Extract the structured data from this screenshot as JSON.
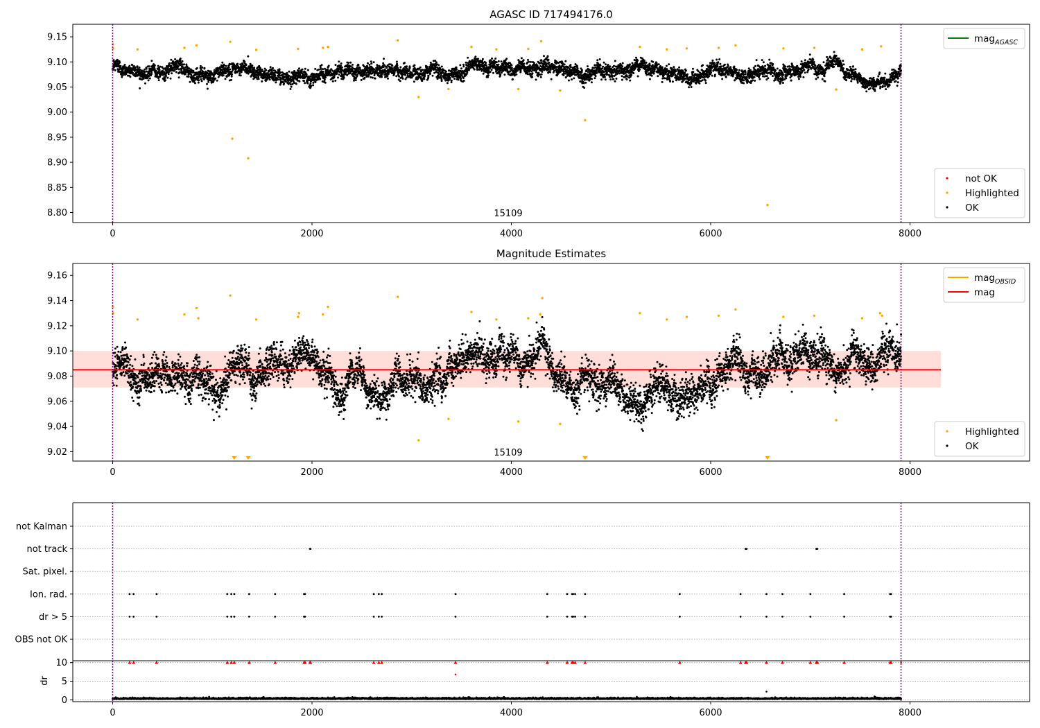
{
  "colors": {
    "ok": "#000000",
    "highlighted": "#ffa500",
    "not_ok": "#ff0000",
    "mag_agasc": "#008000",
    "mag_obsid": "#ffa500",
    "mag": "#ff0000",
    "band": "#ffc8c0",
    "obs_line": "#800080"
  },
  "chart_data": [
    {
      "type": "scatter",
      "title": "AGASC ID 717494176.0",
      "xlim": [
        -400,
        9200
      ],
      "ylim": [
        8.78,
        9.175
      ],
      "xticks": [
        0,
        2000,
        4000,
        6000,
        8000
      ],
      "yticks": [
        8.8,
        8.85,
        8.9,
        8.95,
        9.0,
        9.05,
        9.1,
        9.15
      ],
      "obs_boundaries": [
        0,
        7910
      ],
      "obsid_label": "15109",
      "ok_series": {
        "name": "OK",
        "x_range": [
          0,
          7910
        ],
        "y_baseline": 9.085,
        "y_spread": 0.012
      },
      "highlighted_points": [
        [
          2,
          9.135
        ],
        [
          5,
          9.127
        ],
        [
          250,
          9.125
        ],
        [
          720,
          9.128
        ],
        [
          840,
          9.133
        ],
        [
          1180,
          9.14
        ],
        [
          1200,
          8.947
        ],
        [
          1360,
          8.908
        ],
        [
          1440,
          9.124
        ],
        [
          1860,
          9.126
        ],
        [
          2110,
          9.128
        ],
        [
          2160,
          9.13
        ],
        [
          2860,
          9.143
        ],
        [
          3070,
          9.03
        ],
        [
          3370,
          9.046
        ],
        [
          3600,
          9.13
        ],
        [
          3850,
          9.125
        ],
        [
          4070,
          9.046
        ],
        [
          4170,
          9.126
        ],
        [
          4300,
          9.141
        ],
        [
          4490,
          9.043
        ],
        [
          4740,
          8.984
        ],
        [
          5290,
          9.13
        ],
        [
          5560,
          9.125
        ],
        [
          5760,
          9.127
        ],
        [
          6080,
          9.128
        ],
        [
          6250,
          9.133
        ],
        [
          6570,
          8.815
        ],
        [
          6730,
          9.127
        ],
        [
          7040,
          9.128
        ],
        [
          7260,
          9.045
        ],
        [
          7520,
          9.125
        ],
        [
          7710,
          9.131
        ]
      ],
      "legends": [
        {
          "position": "top-right",
          "entries": [
            {
              "label": "mag",
              "subscript": "AGASC",
              "marker": "line",
              "color": "#008000"
            }
          ]
        },
        {
          "position": "bottom-right",
          "entries": [
            {
              "label": "not OK",
              "marker": "dot",
              "color": "#ff0000"
            },
            {
              "label": "Highlighted",
              "marker": "dot",
              "color": "#ffa500"
            },
            {
              "label": "OK",
              "marker": "dot",
              "color": "#000000"
            }
          ]
        }
      ]
    },
    {
      "type": "scatter",
      "title": "Magnitude Estimates",
      "xlim": [
        -400,
        9200
      ],
      "ylim": [
        9.0125,
        9.1695
      ],
      "xticks": [
        0,
        2000,
        4000,
        6000,
        8000
      ],
      "yticks": [
        9.02,
        9.04,
        9.06,
        9.08,
        9.1,
        9.12,
        9.14,
        9.16
      ],
      "obs_boundaries": [
        0,
        7910
      ],
      "obsid_label": "15109",
      "mag_line": {
        "value": 9.085,
        "x_range": [
          -400,
          8310
        ]
      },
      "mag_band": {
        "range": [
          9.071,
          9.1
        ],
        "x_range": [
          -400,
          8310
        ]
      },
      "ok_series": {
        "name": "OK",
        "x_range": [
          0,
          7910
        ],
        "y_baseline": 9.084,
        "y_spread": 0.012
      },
      "highlighted_points": [
        [
          2,
          9.135
        ],
        [
          5,
          9.13
        ],
        [
          250,
          9.125
        ],
        [
          720,
          9.129
        ],
        [
          840,
          9.134
        ],
        [
          860,
          9.126
        ],
        [
          1180,
          9.144
        ],
        [
          1440,
          9.125
        ],
        [
          1860,
          9.127
        ],
        [
          1870,
          9.13
        ],
        [
          2110,
          9.129
        ],
        [
          2160,
          9.135
        ],
        [
          2860,
          9.143
        ],
        [
          3070,
          9.029
        ],
        [
          3370,
          9.046
        ],
        [
          3600,
          9.131
        ],
        [
          3850,
          9.125
        ],
        [
          4070,
          9.044
        ],
        [
          4170,
          9.126
        ],
        [
          4290,
          9.129
        ],
        [
          4310,
          9.142
        ],
        [
          4490,
          9.042
        ],
        [
          5290,
          9.13
        ],
        [
          5560,
          9.125
        ],
        [
          5760,
          9.127
        ],
        [
          6080,
          9.128
        ],
        [
          6250,
          9.133
        ],
        [
          6730,
          9.127
        ],
        [
          7040,
          9.128
        ],
        [
          7260,
          9.045
        ],
        [
          7520,
          9.126
        ],
        [
          7700,
          9.13
        ],
        [
          7720,
          9.128
        ]
      ],
      "below_axis_markers": [
        1220,
        1360,
        4740,
        6570
      ],
      "legends": [
        {
          "position": "top-right",
          "entries": [
            {
              "label": "mag",
              "subscript": "OBSID",
              "marker": "line",
              "color": "#ffa500"
            },
            {
              "label": "mag",
              "marker": "line",
              "color": "#ff0000"
            }
          ]
        },
        {
          "position": "bottom-right",
          "entries": [
            {
              "label": "Highlighted",
              "marker": "dot",
              "color": "#ffa500"
            },
            {
              "label": "OK",
              "marker": "dot",
              "color": "#000000"
            }
          ]
        }
      ]
    },
    {
      "type": "scatter",
      "title": "",
      "xlim": [
        -400,
        9200
      ],
      "categories": [
        "not Kalman",
        "not track",
        "Sat. pixel.",
        "Ion. rad.",
        "dr > 5",
        "OBS not OK"
      ],
      "obs_boundaries": [
        0,
        7910
      ],
      "flag_points": {
        "not Kalman": [],
        "not track": [
          1980,
          1985,
          6350,
          6360,
          7060,
          7070
        ],
        "Sat. pixel.": [],
        "Ion. rad.": [
          170,
          210,
          440,
          1150,
          1190,
          1220,
          1370,
          1630,
          1920,
          1930,
          2620,
          2670,
          2700,
          3440,
          4360,
          4560,
          4610,
          4620,
          4640,
          4740,
          5690,
          6300,
          6560,
          6720,
          7000,
          7340,
          7800,
          7810
        ],
        "dr > 5": [
          170,
          210,
          440,
          1150,
          1190,
          1220,
          1370,
          1630,
          1920,
          1930,
          2620,
          2670,
          2700,
          3440,
          4360,
          4560,
          4610,
          4620,
          4640,
          4740,
          5690,
          6300,
          6560,
          6720,
          7000,
          7340,
          7800,
          7810
        ],
        "OBS not OK": []
      }
    },
    {
      "type": "scatter",
      "title": "",
      "xlim": [
        -400,
        9200
      ],
      "ylim": [
        -0.5,
        10.5
      ],
      "xticks": [
        0,
        2000,
        4000,
        6000,
        8000
      ],
      "yticks": [
        0,
        5,
        10
      ],
      "ylabel": "dr",
      "clipped_points": [
        170,
        210,
        440,
        1150,
        1190,
        1220,
        1370,
        1630,
        1920,
        1930,
        1980,
        1985,
        2620,
        2670,
        2700,
        3440,
        4360,
        4560,
        4610,
        4620,
        4640,
        4740,
        5690,
        6300,
        6350,
        6360,
        6560,
        6720,
        7000,
        7060,
        7070,
        7340,
        7800,
        7810
      ],
      "extra_points": [
        [
          3440,
          6.8
        ],
        [
          6560,
          2.2
        ],
        [
          7910,
          10
        ]
      ],
      "ok_series": {
        "name": "dr",
        "x_range": [
          0,
          7910
        ],
        "y_baseline": 0.3,
        "y_spread": 0.25
      }
    }
  ]
}
